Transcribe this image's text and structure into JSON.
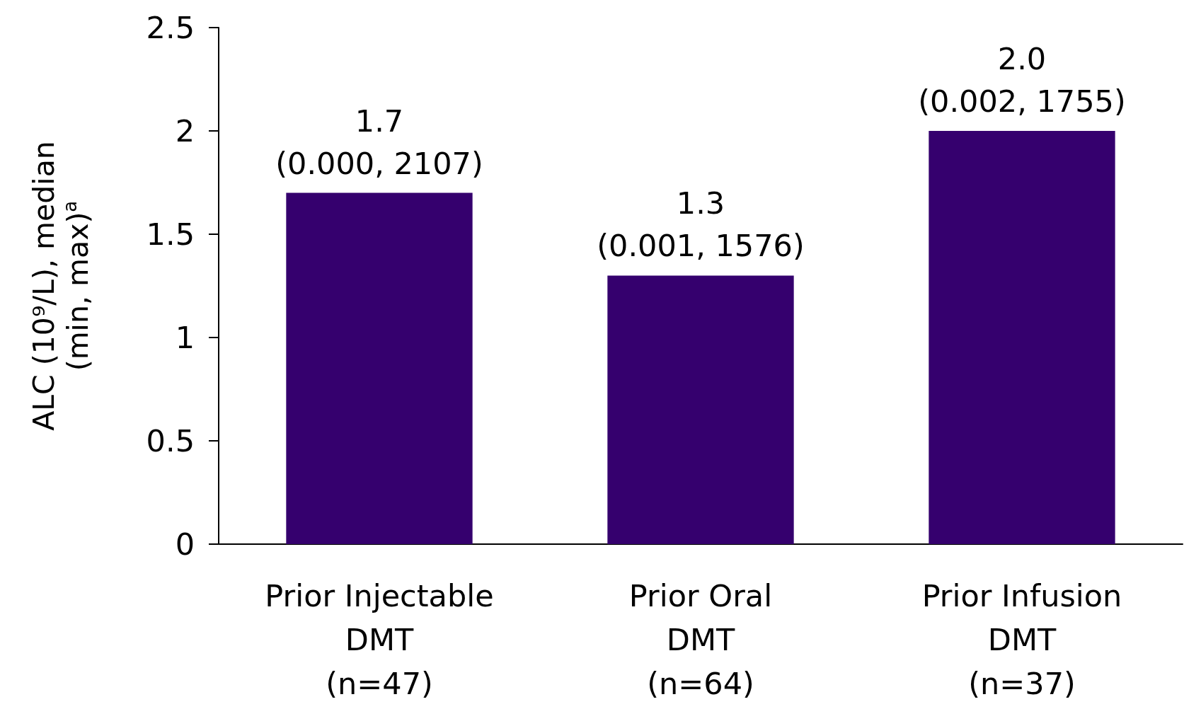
{
  "chart_data": {
    "type": "bar",
    "ylabel": "ALC (10⁹/L), median\n(min, max)$^{a}$",
    "categories": [
      "Prior Injectable\nDMT\n(n=47)",
      "Prior Oral\nDMT\n(n=64)",
      "Prior Infusion\nDMT\n(n=37)"
    ],
    "values": [
      1.7,
      1.3,
      2.0
    ],
    "value_labels": [
      "1.7\n(0.000, 2107)",
      "1.3\n(0.001, 1576)",
      "2.0\n(0.002, 1755)"
    ],
    "color": "#35006e",
    "ylim": [
      0,
      2.5
    ],
    "yticks": [
      0,
      0.5,
      1,
      1.5,
      2,
      2.5
    ],
    "grid": false
  }
}
